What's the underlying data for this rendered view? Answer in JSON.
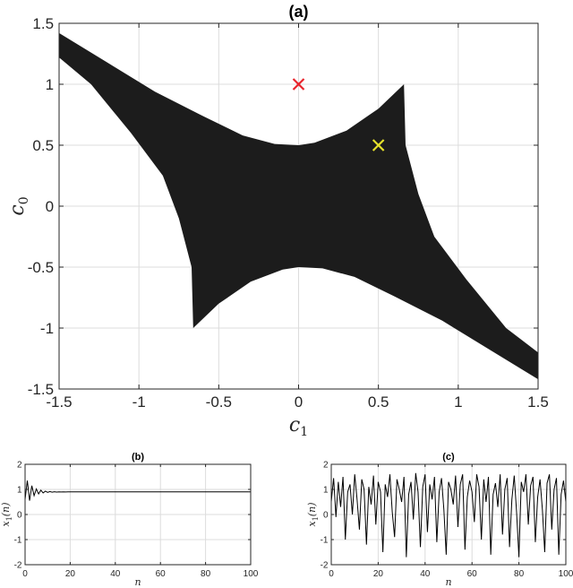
{
  "chart_data": [
    {
      "type": "region",
      "title": "(a)",
      "xlabel": "c",
      "xlabel_sub": "1",
      "ylabel": "c",
      "ylabel_sub": "0",
      "xlim": [
        -1.5,
        1.5
      ],
      "ylim": [
        -1.5,
        1.5
      ],
      "xticks": [
        "-1.5",
        "-1",
        "-0.5",
        "0",
        "0.5",
        "1",
        "1.5"
      ],
      "yticks": [
        "-1.5",
        "-1",
        "-0.5",
        "0",
        "0.5",
        "1",
        "1.5"
      ],
      "xtick_values": [
        -1.5,
        -1,
        -0.5,
        0,
        0.5,
        1,
        1.5
      ],
      "ytick_values": [
        -1.5,
        -1,
        -0.5,
        0,
        0.5,
        1,
        1.5
      ],
      "grid": true,
      "region_color": "#1c1c1c",
      "region_outline": [
        [
          -1.5,
          1.42
        ],
        [
          -1.2,
          1.18
        ],
        [
          -0.9,
          0.94
        ],
        [
          -0.6,
          0.74
        ],
        [
          -0.35,
          0.58
        ],
        [
          -0.15,
          0.51
        ],
        [
          0.0,
          0.5
        ],
        [
          0.1,
          0.52
        ],
        [
          0.3,
          0.62
        ],
        [
          0.5,
          0.8
        ],
        [
          0.66,
          1.0
        ],
        [
          0.67,
          0.5
        ],
        [
          0.75,
          0.1
        ],
        [
          0.85,
          -0.25
        ],
        [
          1.05,
          -0.6
        ],
        [
          1.3,
          -1.0
        ],
        [
          1.5,
          -1.2
        ],
        [
          1.5,
          -1.42
        ],
        [
          1.2,
          -1.18
        ],
        [
          0.9,
          -0.94
        ],
        [
          0.6,
          -0.74
        ],
        [
          0.35,
          -0.58
        ],
        [
          0.15,
          -0.51
        ],
        [
          0.0,
          -0.5
        ],
        [
          -0.1,
          -0.52
        ],
        [
          -0.3,
          -0.62
        ],
        [
          -0.5,
          -0.8
        ],
        [
          -0.66,
          -1.0
        ],
        [
          -0.67,
          -0.5
        ],
        [
          -0.75,
          -0.1
        ],
        [
          -0.85,
          0.25
        ],
        [
          -1.05,
          0.6
        ],
        [
          -1.3,
          1.0
        ],
        [
          -1.5,
          1.22
        ]
      ],
      "markers": [
        {
          "x": 0,
          "y": 1,
          "color": "#e8232b",
          "symbol": "x"
        },
        {
          "x": 0.5,
          "y": 0.5,
          "color": "#e6e22c",
          "symbol": "x"
        }
      ]
    },
    {
      "type": "line",
      "title": "(b)",
      "xlabel": "n",
      "ylabel": "x",
      "ylabel_sub": "1",
      "ylabel_arg": "(n)",
      "xlim": [
        0,
        100
      ],
      "ylim": [
        -2,
        2
      ],
      "xticks": [
        "0",
        "20",
        "40",
        "60",
        "80",
        "100"
      ],
      "yticks": [
        "-2",
        "-1",
        "0",
        "1",
        "2"
      ],
      "xtick_values": [
        0,
        20,
        40,
        60,
        80,
        100
      ],
      "ytick_values": [
        -2,
        -1,
        0,
        1,
        2
      ],
      "grid": true,
      "line_color": "#000000",
      "y": [
        0.6,
        1.35,
        0.55,
        1.15,
        0.75,
        1.02,
        0.82,
        0.97,
        0.86,
        0.93,
        0.88,
        0.915,
        0.89,
        0.905,
        0.895,
        0.9,
        0.897,
        0.9,
        0.898,
        0.9,
        0.9,
        0.9,
        0.9,
        0.9,
        0.9,
        0.9,
        0.9,
        0.9,
        0.9,
        0.9,
        0.9,
        0.9,
        0.9,
        0.9,
        0.9,
        0.9,
        0.9,
        0.9,
        0.9,
        0.9,
        0.9,
        0.9,
        0.9,
        0.9,
        0.9,
        0.9,
        0.9,
        0.9,
        0.9,
        0.9,
        0.9,
        0.9,
        0.9,
        0.9,
        0.9,
        0.9,
        0.9,
        0.9,
        0.9,
        0.9,
        0.9,
        0.9,
        0.9,
        0.9,
        0.9,
        0.9,
        0.9,
        0.9,
        0.9,
        0.9,
        0.9,
        0.9,
        0.9,
        0.9,
        0.9,
        0.9,
        0.9,
        0.9,
        0.9,
        0.9,
        0.9,
        0.9,
        0.9,
        0.9,
        0.9,
        0.9,
        0.9,
        0.9,
        0.9,
        0.9,
        0.9,
        0.9,
        0.9,
        0.9,
        0.9,
        0.9,
        0.9,
        0.9,
        0.9,
        0.9,
        0.9
      ]
    },
    {
      "type": "line",
      "title": "(c)",
      "xlabel": "n",
      "ylabel": "x",
      "ylabel_sub": "1",
      "ylabel_arg": "(n)",
      "xlim": [
        0,
        100
      ],
      "ylim": [
        -2,
        2
      ],
      "xticks": [
        "0",
        "20",
        "40",
        "60",
        "80",
        "100"
      ],
      "yticks": [
        "-2",
        "-1",
        "0",
        "1",
        "2"
      ],
      "xtick_values": [
        0,
        20,
        40,
        60,
        80,
        100
      ],
      "ytick_values": [
        -2,
        -1,
        0,
        1,
        2
      ],
      "grid": true,
      "line_color": "#000000",
      "y": [
        0.5,
        1.45,
        -0.1,
        1.3,
        0.3,
        1.5,
        -1.0,
        0.9,
        1.2,
        0.0,
        1.6,
        0.6,
        -0.6,
        1.4,
        1.0,
        -1.2,
        1.1,
        0.4,
        1.55,
        -0.4,
        1.3,
        0.9,
        -1.5,
        1.2,
        0.7,
        1.6,
        0.1,
        -0.9,
        1.4,
        1.0,
        0.5,
        1.5,
        -1.7,
        0.8,
        1.3,
        -0.2,
        1.65,
        0.9,
        -1.3,
        1.1,
        1.6,
        -0.7,
        1.2,
        0.6,
        1.5,
        -1.1,
        0.9,
        1.45,
        0.2,
        -1.6,
        1.3,
        1.0,
        0.4,
        1.55,
        -0.5,
        1.2,
        1.6,
        -1.4,
        0.7,
        1.35,
        0.9,
        -0.3,
        1.6,
        1.1,
        -1.0,
        1.4,
        0.5,
        1.5,
        -1.6,
        0.8,
        1.25,
        0.3,
        1.6,
        -0.8,
        1.0,
        1.45,
        -1.3,
        0.6,
        1.55,
        0.1,
        -1.7,
        1.3,
        0.9,
        1.6,
        -0.4,
        1.15,
        1.5,
        -1.1,
        0.7,
        1.4,
        0.2,
        -1.5,
        1.25,
        1.6,
        -0.6,
        1.0,
        1.45,
        -1.6,
        0.8,
        1.35,
        0.5
      ]
    }
  ]
}
